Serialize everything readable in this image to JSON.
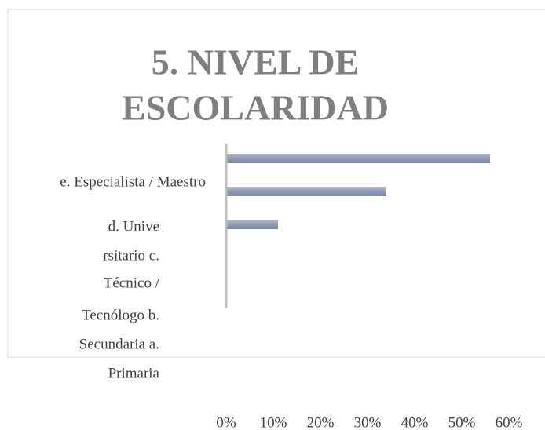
{
  "chart_data": {
    "type": "bar",
    "orientation": "horizontal",
    "title_lines": [
      "5. NIVEL DE",
      "ESCOLARIDAD"
    ],
    "label_lines": [
      "e. Especialista / Maestro",
      "d. Unive",
      "rsitario c.",
      "Técnico /",
      "Tecnólogo b.",
      "Secundaria a.",
      "Primaria"
    ],
    "values": [
      56,
      34,
      11,
      0,
      0
    ],
    "color": "#8e9bb6",
    "xlim": [
      0,
      60
    ],
    "xticks": [
      {
        "value": 0,
        "label": "0%"
      },
      {
        "value": 10,
        "label": "10%"
      },
      {
        "value": 20,
        "label": "20%"
      },
      {
        "value": 30,
        "label": "30%"
      },
      {
        "value": 40,
        "label": "40%"
      },
      {
        "value": 50,
        "label": "50%"
      },
      {
        "value": 60,
        "label": "60%"
      }
    ],
    "grid": false
  }
}
